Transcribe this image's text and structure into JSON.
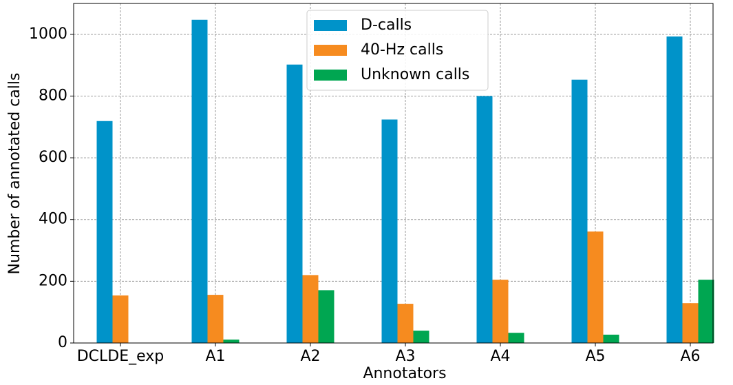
{
  "chart_data": {
    "type": "bar",
    "xlabel": "Annotators",
    "ylabel": "Number of annotated calls",
    "categories": [
      "DCLDE_exp",
      "A1",
      "A2",
      "A3",
      "A4",
      "A5",
      "A6"
    ],
    "series": [
      {
        "name": "D-calls",
        "color": "#0093c9",
        "values": [
          719,
          1047,
          902,
          724,
          800,
          853,
          993
        ]
      },
      {
        "name": "40-Hz calls",
        "color": "#f68b1f",
        "values": [
          154,
          156,
          220,
          127,
          205,
          361,
          129
        ]
      },
      {
        "name": "Unknown calls",
        "color": "#00a651",
        "values": [
          0,
          11,
          171,
          40,
          33,
          27,
          205
        ]
      }
    ],
    "ylim": [
      0,
      1100
    ],
    "yticks": [
      0,
      200,
      400,
      600,
      800,
      1000
    ],
    "grid": true,
    "legend": "upper center"
  }
}
